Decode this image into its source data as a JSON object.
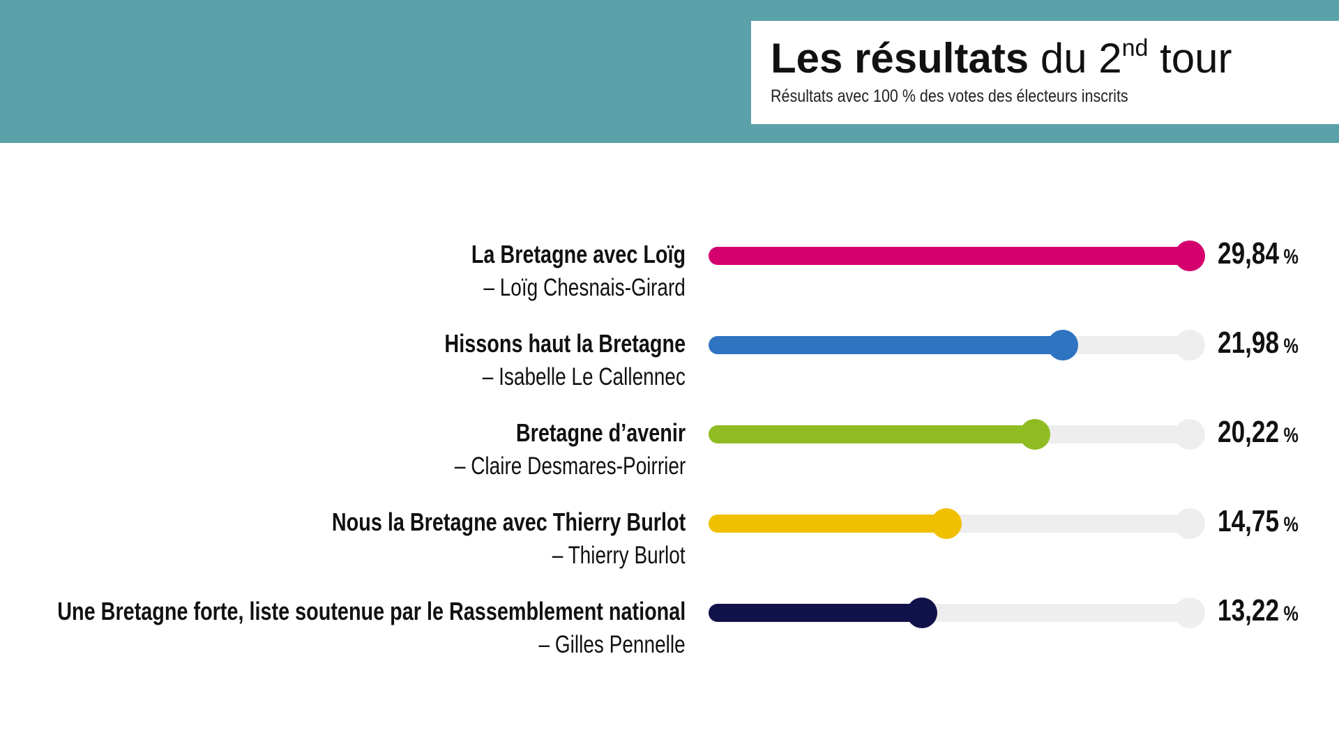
{
  "header": {
    "title_bold": "Les résultats",
    "title_light": "du 2",
    "title_sup": "nd",
    "title_end": "tour",
    "subtitle": "Résultats avec 100 % des votes des électeurs inscrits"
  },
  "chart_data": {
    "type": "bar",
    "title": "Les résultats du 2nd tour",
    "subtitle": "Résultats avec 100 % des votes des électeurs inscrits",
    "unit": "%",
    "xlim": [
      0,
      29.84
    ],
    "categories": [
      "La Bretagne avec Loïg",
      "Hissons haut la Bretagne",
      "Bretagne d’avenir",
      "Nous la Bretagne avec Thierry Burlot",
      "Une Bretagne forte, liste soutenue par le Rassemblement national"
    ],
    "candidates": [
      "– Loïg Chesnais-Girard",
      "– Isabelle Le Callennec",
      "– Claire Desmares-Poirrier",
      "– Thierry Burlot",
      "– Gilles Pennelle"
    ],
    "values": [
      29.84,
      21.98,
      20.22,
      14.75,
      13.22
    ],
    "value_labels": [
      "29,84",
      "21,98",
      "20,22",
      "14,75",
      "13,22"
    ],
    "colors": [
      "#d4006e",
      "#2f74c0",
      "#8fbc23",
      "#f0c000",
      "#12124a"
    ],
    "track_color": "#eeeeee"
  }
}
